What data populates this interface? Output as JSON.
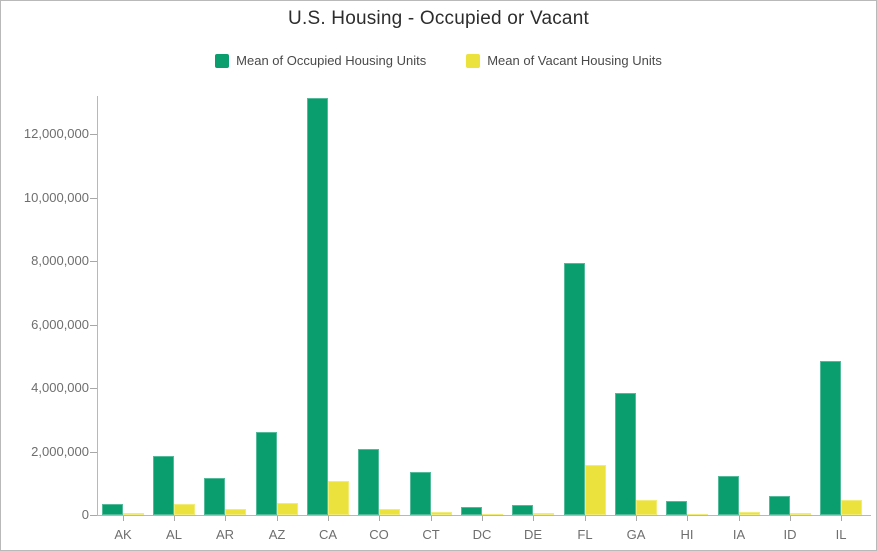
{
  "title": "U.S. Housing - Occupied or Vacant",
  "legend": {
    "items": [
      {
        "id": "occupied",
        "label": "Mean of Occupied Housing Units",
        "color": "#0a9e6e"
      },
      {
        "id": "vacant",
        "label": "Mean of Vacant Housing Units",
        "color": "#ebe23e"
      }
    ]
  },
  "y_axis": {
    "tick_labels": [
      "0",
      "2,000,000",
      "4,000,000",
      "6,000,000",
      "8,000,000",
      "10,000,000",
      "12,000,000"
    ]
  },
  "chart_data": {
    "type": "bar",
    "title": "U.S. Housing - Occupied or Vacant",
    "categories": [
      "AK",
      "AL",
      "AR",
      "AZ",
      "CA",
      "CO",
      "CT",
      "DC",
      "DE",
      "FL",
      "GA",
      "HI",
      "IA",
      "ID",
      "IL"
    ],
    "series": [
      {
        "name": "Mean of Occupied Housing Units",
        "color": "#0a9e6e",
        "values": [
          350000,
          1860000,
          1150000,
          2610000,
          13120000,
          2090000,
          1350000,
          250000,
          330000,
          7930000,
          3830000,
          440000,
          1230000,
          600000,
          4860000
        ]
      },
      {
        "name": "Mean of Vacant Housing Units",
        "color": "#ebe23e",
        "values": [
          60000,
          360000,
          190000,
          380000,
          1070000,
          200000,
          110000,
          30000,
          50000,
          1590000,
          470000,
          40000,
          110000,
          50000,
          460000
        ]
      }
    ],
    "xlabel": "",
    "ylabel": "",
    "ylim": [
      0,
      13200000
    ],
    "yticks": [
      0,
      2000000,
      4000000,
      6000000,
      8000000,
      10000000,
      12000000
    ],
    "grid": false,
    "legend_position": "top"
  },
  "colors": {
    "occupied": "#0a9e6e",
    "vacant": "#ebe23e",
    "axis_line": "#b8b8b8",
    "tick": "#a8a8a8",
    "axis_text": "#6e6e6e",
    "title_text": "#2d2d2d",
    "legend_text": "#4a4a4a",
    "border": "#b9b9b9",
    "background": "#ffffff"
  }
}
